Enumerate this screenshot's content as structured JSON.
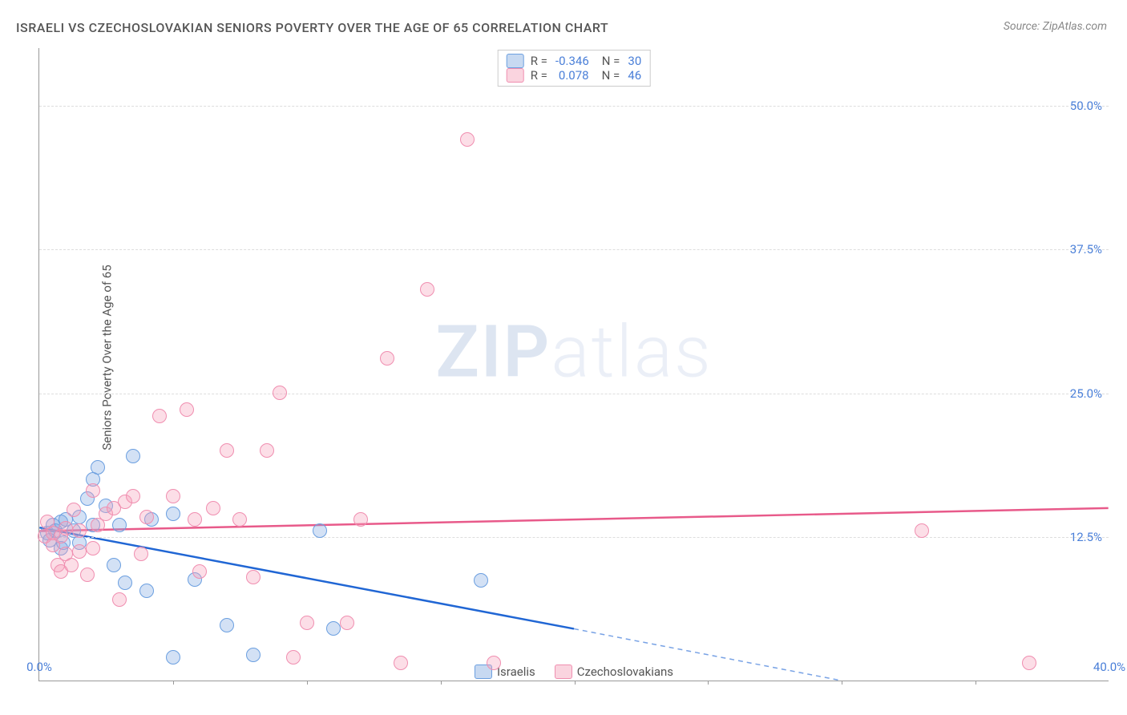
{
  "title": "ISRAELI VS CZECHOSLOVAKIAN SENIORS POVERTY OVER THE AGE OF 65 CORRELATION CHART",
  "source": "Source: ZipAtlas.com",
  "ylabel": "Seniors Poverty Over the Age of 65",
  "watermark_bold": "ZIP",
  "watermark_light": "atlas",
  "chart": {
    "type": "scatter",
    "xlim": [
      0,
      40
    ],
    "ylim": [
      0,
      55
    ],
    "xticks": [
      0,
      20,
      40
    ],
    "xtick_labels": [
      "0.0%",
      "",
      "40.0%"
    ],
    "xtick_minor": [
      5,
      10,
      15,
      20,
      25,
      30,
      35
    ],
    "yticks": [
      12.5,
      25.0,
      37.5,
      50.0
    ],
    "ytick_labels": [
      "12.5%",
      "25.0%",
      "37.5%",
      "50.0%"
    ],
    "grid_color": "#dddddd",
    "background_color": "#ffffff",
    "axis_color": "#999999",
    "tick_label_color": "#4a7fd8"
  },
  "series": [
    {
      "name": "Israelis",
      "color_fill": "rgba(130,170,225,0.35)",
      "color_border": "#6b9fe0",
      "trend_color": "#2066d4",
      "R": "-0.346",
      "N": "30",
      "trend": {
        "x1": 0,
        "y1": 13.3,
        "x2_solid": 20,
        "y2_solid": 4.5,
        "x2_dash": 30,
        "y2_dash": 0
      },
      "points": [
        [
          0.3,
          12.8
        ],
        [
          0.5,
          13.5
        ],
        [
          0.4,
          12.2
        ],
        [
          0.6,
          13.0
        ],
        [
          0.8,
          11.5
        ],
        [
          0.8,
          13.8
        ],
        [
          1.0,
          14.0
        ],
        [
          0.9,
          12.0
        ],
        [
          1.3,
          13.0
        ],
        [
          1.5,
          14.2
        ],
        [
          1.8,
          15.8
        ],
        [
          1.5,
          12.0
        ],
        [
          2.0,
          13.5
        ],
        [
          2.0,
          17.5
        ],
        [
          2.2,
          18.5
        ],
        [
          2.5,
          15.2
        ],
        [
          2.8,
          10.0
        ],
        [
          3.0,
          13.5
        ],
        [
          3.2,
          8.5
        ],
        [
          3.5,
          19.5
        ],
        [
          4.0,
          7.8
        ],
        [
          4.2,
          14.0
        ],
        [
          5.0,
          14.5
        ],
        [
          5.0,
          2.0
        ],
        [
          5.8,
          8.8
        ],
        [
          7.0,
          4.8
        ],
        [
          8.0,
          2.2
        ],
        [
          10.5,
          13.0
        ],
        [
          11.0,
          4.5
        ],
        [
          16.5,
          8.7
        ]
      ]
    },
    {
      "name": "Czechoslovakians",
      "color_fill": "rgba(245,160,185,0.35)",
      "color_border": "#f08eb0",
      "trend_color": "#e85a8a",
      "R": "0.078",
      "N": "46",
      "trend": {
        "x1": 0,
        "y1": 13.0,
        "x2_solid": 40,
        "y2_solid": 15.0
      },
      "points": [
        [
          0.2,
          12.5
        ],
        [
          0.3,
          13.8
        ],
        [
          0.5,
          11.8
        ],
        [
          0.5,
          12.8
        ],
        [
          0.7,
          10.0
        ],
        [
          0.8,
          12.5
        ],
        [
          0.8,
          9.5
        ],
        [
          1.0,
          11.0
        ],
        [
          1.0,
          13.2
        ],
        [
          1.2,
          10.0
        ],
        [
          1.3,
          14.8
        ],
        [
          1.5,
          11.2
        ],
        [
          1.5,
          13.0
        ],
        [
          1.8,
          9.2
        ],
        [
          2.0,
          11.5
        ],
        [
          2.0,
          16.5
        ],
        [
          2.2,
          13.5
        ],
        [
          2.5,
          14.5
        ],
        [
          2.8,
          15.0
        ],
        [
          3.0,
          7.0
        ],
        [
          3.2,
          15.5
        ],
        [
          3.5,
          16.0
        ],
        [
          3.8,
          11.0
        ],
        [
          4.0,
          14.2
        ],
        [
          4.5,
          23.0
        ],
        [
          5.0,
          16.0
        ],
        [
          5.5,
          23.5
        ],
        [
          5.8,
          14.0
        ],
        [
          6.0,
          9.5
        ],
        [
          6.5,
          15.0
        ],
        [
          7.0,
          20.0
        ],
        [
          7.5,
          14.0
        ],
        [
          8.0,
          9.0
        ],
        [
          8.5,
          20.0
        ],
        [
          9.0,
          25.0
        ],
        [
          9.5,
          2.0
        ],
        [
          10.0,
          5.0
        ],
        [
          11.5,
          5.0
        ],
        [
          12.0,
          14.0
        ],
        [
          13.0,
          28.0
        ],
        [
          13.5,
          1.5
        ],
        [
          14.5,
          34.0
        ],
        [
          16.0,
          47.0
        ],
        [
          17.0,
          1.5
        ],
        [
          33.0,
          13.0
        ],
        [
          37.0,
          1.5
        ]
      ]
    }
  ],
  "legend_top_label_R": "R =",
  "legend_top_label_N": "N ="
}
